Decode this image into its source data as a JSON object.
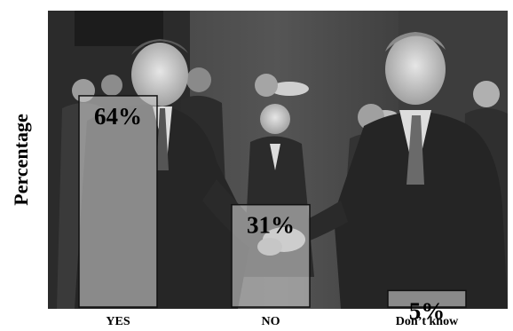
{
  "chart_data": {
    "type": "bar",
    "title": "",
    "xlabel": "",
    "ylabel": "Percentage",
    "categories": [
      "YES",
      "NO",
      "Don’t know"
    ],
    "values": [
      64,
      31,
      5
    ],
    "value_labels": [
      "64%",
      "31%",
      "5%"
    ],
    "ylim": [
      0,
      100
    ],
    "grid": false,
    "legend": "none",
    "background": "black-and-white photograph of men shaking hands",
    "colors": {
      "bar_fill": "#c8c8c8",
      "bar_stroke": "#111111",
      "photo_dark": "#2a2a2a",
      "photo_mid": "#6e6e6e",
      "photo_light": "#d9d9d9"
    }
  }
}
